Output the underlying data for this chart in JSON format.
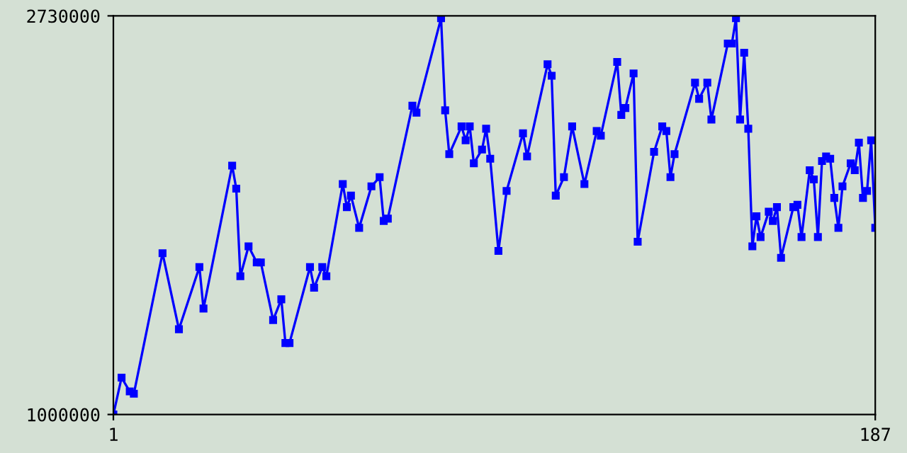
{
  "chart_data": {
    "type": "line",
    "x": [
      1,
      3,
      5,
      6,
      13,
      17,
      22,
      23,
      30,
      31,
      32,
      34,
      36,
      37,
      40,
      42,
      43,
      44,
      49,
      50,
      52,
      53,
      57,
      58,
      59,
      61,
      64,
      66,
      67,
      68,
      74,
      75,
      81,
      82,
      83,
      86,
      87,
      88,
      89,
      91,
      92,
      93,
      95,
      97,
      101,
      102,
      107,
      108,
      109,
      111,
      113,
      116,
      119,
      120,
      124,
      125,
      126,
      128,
      129,
      133,
      135,
      136,
      137,
      138,
      143,
      144,
      146,
      147,
      151,
      152,
      153,
      154,
      155,
      156,
      157,
      158,
      159,
      161,
      162,
      163,
      164,
      167,
      168,
      169,
      171,
      172,
      173,
      174,
      175,
      176,
      177,
      178,
      179,
      181,
      182,
      183,
      184,
      185,
      186,
      187
    ],
    "series": [
      {
        "color": "#0000ff",
        "values": [
          1000000,
          1160000,
          1100000,
          1090000,
          1700000,
          1370000,
          1640000,
          1460000,
          2080000,
          1980000,
          1600000,
          1730000,
          1660000,
          1660000,
          1410000,
          1500000,
          1310000,
          1310000,
          1640000,
          1550000,
          1640000,
          1600000,
          2000000,
          1900000,
          1950000,
          1810000,
          1990000,
          2030000,
          1840000,
          1850000,
          2340000,
          2310000,
          2720000,
          2320000,
          2130000,
          2250000,
          2190000,
          2250000,
          2090000,
          2150000,
          2240000,
          2110000,
          1710000,
          1970000,
          2220000,
          2120000,
          2520000,
          2470000,
          1950000,
          2030000,
          2250000,
          2000000,
          2230000,
          2210000,
          2530000,
          2300000,
          2330000,
          2480000,
          1750000,
          2140000,
          2250000,
          2230000,
          2030000,
          2130000,
          2440000,
          2370000,
          2440000,
          2280000,
          2610000,
          2610000,
          2720000,
          2280000,
          2570000,
          2240000,
          1730000,
          1860000,
          1770000,
          1880000,
          1840000,
          1900000,
          1680000,
          1900000,
          1910000,
          1770000,
          2060000,
          2020000,
          1770000,
          2100000,
          2120000,
          2110000,
          1940000,
          1810000,
          1990000,
          2090000,
          2060000,
          2180000,
          1940000,
          1970000,
          2190000,
          1810000
        ]
      }
    ],
    "xlim": [
      1,
      187
    ],
    "ylim": [
      1000000,
      2730000
    ],
    "xticks": [
      1,
      187
    ],
    "yticks": [
      1000000,
      2730000
    ],
    "marker": "square",
    "grid": false
  }
}
